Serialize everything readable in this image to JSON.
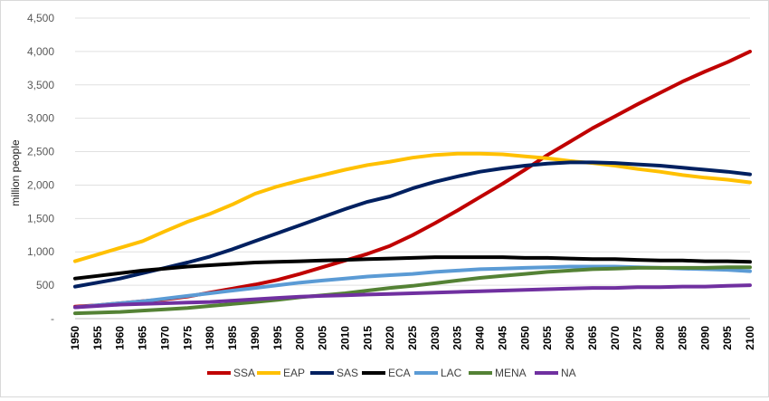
{
  "chart_data": {
    "type": "line",
    "title": "",
    "xlabel": "",
    "ylabel": "million people",
    "ylim": [
      0,
      4500
    ],
    "yticks": [
      0,
      500,
      1000,
      1500,
      2000,
      2500,
      3000,
      3500,
      4000,
      4500
    ],
    "ytick_labels": [
      "-",
      "500",
      "1,000",
      "1,500",
      "2,000",
      "2,500",
      "3,000",
      "3,500",
      "4,000",
      "4,500"
    ],
    "x": [
      1950,
      1955,
      1960,
      1965,
      1970,
      1975,
      1980,
      1985,
      1990,
      1995,
      2000,
      2005,
      2010,
      2015,
      2020,
      2025,
      2030,
      2035,
      2040,
      2045,
      2050,
      2055,
      2060,
      2065,
      2070,
      2075,
      2080,
      2085,
      2090,
      2095,
      2100
    ],
    "xtick_labels": [
      "1950",
      "1955",
      "1960",
      "1965",
      "1970",
      "1975",
      "1980",
      "1985",
      "1990",
      "1995",
      "2000",
      "2005",
      "2010",
      "2015",
      "2020",
      "2025",
      "2030",
      "2035",
      "2040",
      "2045",
      "2050",
      "2055",
      "2060",
      "2065",
      "2070",
      "2075",
      "2080",
      "2085",
      "2090",
      "2095",
      "2100"
    ],
    "grid": "horizontal",
    "legend_position": "bottom",
    "series": [
      {
        "name": "SSA",
        "color": "#c00000",
        "values": [
          180,
          200,
          230,
          260,
          290,
          330,
          390,
          450,
          510,
          580,
          670,
          770,
          870,
          970,
          1090,
          1250,
          1430,
          1620,
          1820,
          2020,
          2230,
          2450,
          2650,
          2850,
          3030,
          3210,
          3380,
          3550,
          3700,
          3840,
          4000
        ]
      },
      {
        "name": "EAP",
        "color": "#ffc000",
        "values": [
          860,
          960,
          1060,
          1160,
          1310,
          1450,
          1570,
          1710,
          1870,
          1980,
          2070,
          2150,
          2230,
          2300,
          2350,
          2410,
          2450,
          2470,
          2470,
          2460,
          2430,
          2400,
          2360,
          2330,
          2290,
          2240,
          2200,
          2150,
          2110,
          2080,
          2040
        ]
      },
      {
        "name": "SAS",
        "color": "#002060",
        "values": [
          480,
          540,
          600,
          680,
          760,
          840,
          930,
          1040,
          1160,
          1280,
          1400,
          1520,
          1640,
          1750,
          1830,
          1950,
          2050,
          2130,
          2200,
          2250,
          2290,
          2320,
          2340,
          2340,
          2330,
          2310,
          2290,
          2260,
          2230,
          2200,
          2160
        ]
      },
      {
        "name": "ECA",
        "color": "#000000",
        "values": [
          600,
          640,
          680,
          720,
          750,
          780,
          800,
          820,
          840,
          850,
          860,
          870,
          880,
          890,
          900,
          910,
          920,
          920,
          920,
          920,
          910,
          910,
          900,
          890,
          890,
          880,
          870,
          870,
          860,
          860,
          850
        ]
      },
      {
        "name": "LAC",
        "color": "#5b9bd5",
        "values": [
          170,
          200,
          230,
          260,
          300,
          340,
          380,
          420,
          460,
          500,
          540,
          570,
          600,
          630,
          650,
          670,
          700,
          720,
          740,
          750,
          760,
          770,
          780,
          780,
          780,
          770,
          760,
          750,
          740,
          730,
          710
        ]
      },
      {
        "name": "MENA",
        "color": "#548235",
        "values": [
          80,
          90,
          100,
          120,
          140,
          160,
          190,
          220,
          250,
          280,
          320,
          350,
          380,
          420,
          460,
          490,
          530,
          570,
          610,
          640,
          670,
          700,
          720,
          740,
          750,
          760,
          760,
          760,
          760,
          770,
          770
        ]
      },
      {
        "name": "NA",
        "color": "#7030a0",
        "values": [
          170,
          190,
          210,
          220,
          230,
          240,
          250,
          270,
          290,
          310,
          330,
          340,
          350,
          360,
          370,
          380,
          390,
          400,
          410,
          420,
          430,
          440,
          450,
          460,
          460,
          470,
          470,
          480,
          480,
          490,
          500
        ]
      }
    ]
  }
}
